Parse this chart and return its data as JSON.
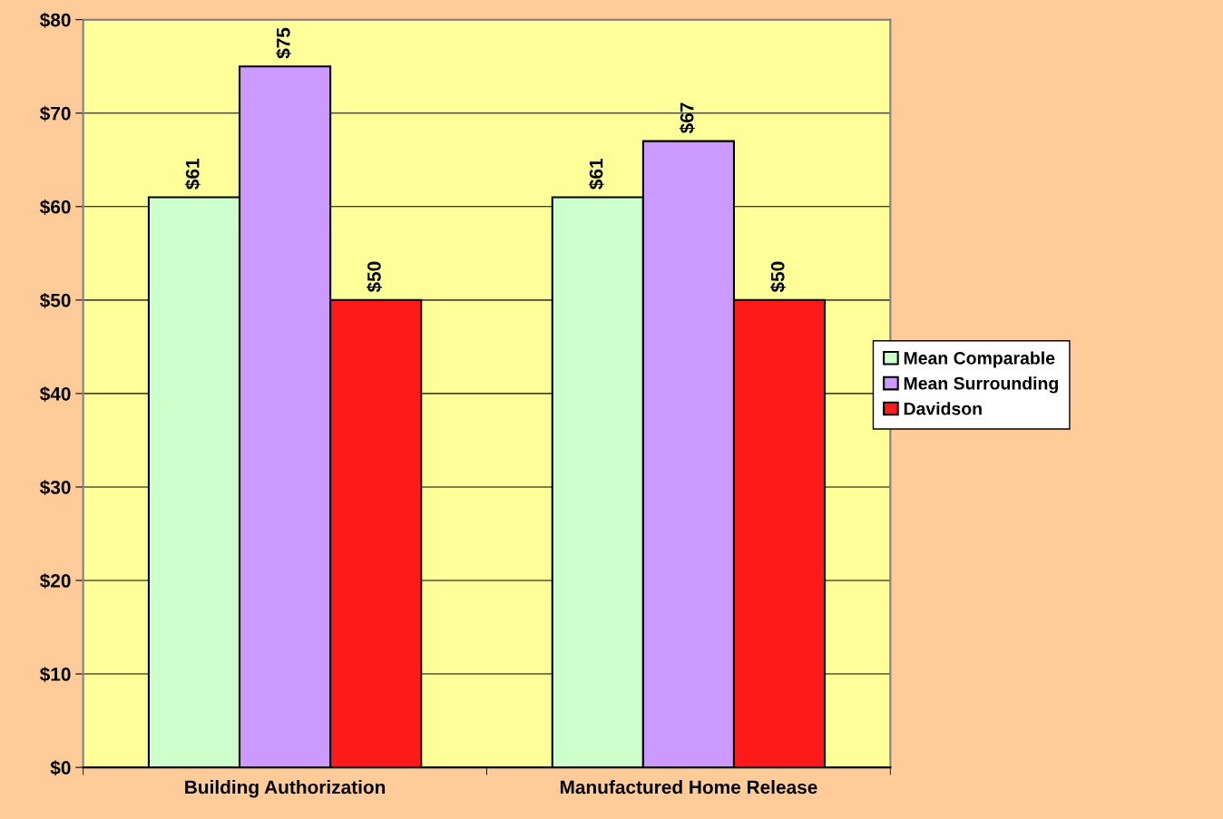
{
  "chart_data": {
    "type": "bar",
    "categories": [
      "Building Authorization",
      "Manufactured Home Release"
    ],
    "series": [
      {
        "name": "Mean Comparable",
        "color": "#ccffcc",
        "values": [
          61,
          61
        ],
        "value_labels": [
          "$61",
          "$61"
        ]
      },
      {
        "name": "Mean Surrounding",
        "color": "#cc99ff",
        "values": [
          75,
          67
        ],
        "value_labels": [
          "$75",
          "$67"
        ]
      },
      {
        "name": "Davidson",
        "color": "#ff1a1a",
        "values": [
          50,
          50
        ],
        "value_labels": [
          "$50",
          "$50"
        ]
      }
    ],
    "ylim": [
      0,
      80
    ],
    "yticks": [
      {
        "value": 0,
        "label": "$0"
      },
      {
        "value": 10,
        "label": "$10"
      },
      {
        "value": 20,
        "label": "$20"
      },
      {
        "value": 30,
        "label": "$30"
      },
      {
        "value": 40,
        "label": "$40"
      },
      {
        "value": 50,
        "label": "$50"
      },
      {
        "value": 60,
        "label": "$60"
      },
      {
        "value": 70,
        "label": "$70"
      },
      {
        "value": 80,
        "label": "$80"
      }
    ],
    "grid": "y",
    "legend": "right"
  }
}
